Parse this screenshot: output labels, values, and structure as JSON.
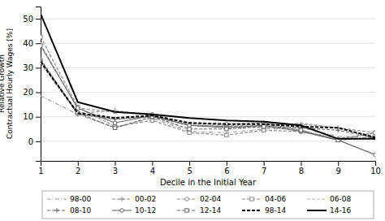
{
  "chart_data": {
    "type": "line",
    "xlabel": "Decile in the Initial Year",
    "ylabel": "Relative Growth\nContractual Hourly Wages [%]",
    "x": [
      1,
      2,
      3,
      4,
      5,
      6,
      7,
      8,
      9,
      10
    ],
    "xlim": [
      1,
      10
    ],
    "xticks": [
      1,
      2,
      3,
      4,
      5,
      6,
      7,
      8,
      9,
      10
    ],
    "ylim": [
      -8,
      55
    ],
    "yticks": [
      0,
      10,
      20,
      30,
      40,
      50
    ],
    "grid": true,
    "legend": "bottom",
    "series": [
      {
        "name": "98-00",
        "color": "#999999",
        "line_style": "dashdot",
        "marker": "none",
        "values": [
          18.5,
          11.0,
          5.5,
          9.5,
          4.0,
          3.5,
          5.0,
          5.5,
          2.0,
          1.5
        ]
      },
      {
        "name": "00-02",
        "color": "#888888",
        "line_style": "dashed",
        "marker": "plus",
        "values": [
          33.0,
          11.5,
          12.5,
          10.5,
          6.5,
          6.5,
          6.5,
          7.0,
          5.5,
          3.5
        ]
      },
      {
        "name": "02-04",
        "color": "#888888",
        "line_style": "dashed",
        "marker": "circle",
        "values": [
          39.5,
          13.5,
          12.0,
          11.0,
          7.0,
          7.0,
          7.5,
          4.5,
          1.0,
          3.5
        ]
      },
      {
        "name": "04-06",
        "color": "#888888",
        "line_style": "dashed",
        "marker": "square",
        "values": [
          42.5,
          14.0,
          6.0,
          8.5,
          3.5,
          2.5,
          4.5,
          4.0,
          0.5,
          3.5
        ]
      },
      {
        "name": "06-08",
        "color": "#aaaaaa",
        "line_style": "dashed",
        "marker": "none",
        "values": [
          32.0,
          11.0,
          9.0,
          10.0,
          6.5,
          6.0,
          5.5,
          7.5,
          5.5,
          2.0
        ]
      },
      {
        "name": "08-10",
        "color": "#666666",
        "line_style": "dashed",
        "marker": "plus",
        "values": [
          33.5,
          11.0,
          9.0,
          10.0,
          6.5,
          6.0,
          6.0,
          5.5,
          4.5,
          1.5
        ]
      },
      {
        "name": "10-12",
        "color": "#666666",
        "line_style": "solid",
        "marker": "circle",
        "values": [
          39.0,
          13.5,
          7.5,
          10.5,
          6.5,
          5.5,
          6.5,
          4.0,
          0.5,
          -5.5
        ]
      },
      {
        "name": "12-14",
        "color": "#666666",
        "line_style": "dashed",
        "marker": "square",
        "values": [
          32.0,
          11.5,
          5.5,
          10.0,
          5.0,
          5.0,
          6.0,
          4.5,
          0.5,
          1.5
        ]
      },
      {
        "name": "98-14",
        "color": "#000000",
        "line_style": "dashed",
        "marker": "none",
        "values": [
          32.5,
          11.5,
          9.5,
          10.5,
          7.5,
          7.0,
          7.0,
          6.0,
          5.5,
          1.5
        ]
      },
      {
        "name": "14-16",
        "color": "#000000",
        "line_style": "solid",
        "marker": "none",
        "values": [
          52.0,
          16.0,
          12.0,
          11.0,
          9.5,
          8.5,
          8.0,
          6.5,
          1.0,
          1.0
        ]
      }
    ]
  }
}
